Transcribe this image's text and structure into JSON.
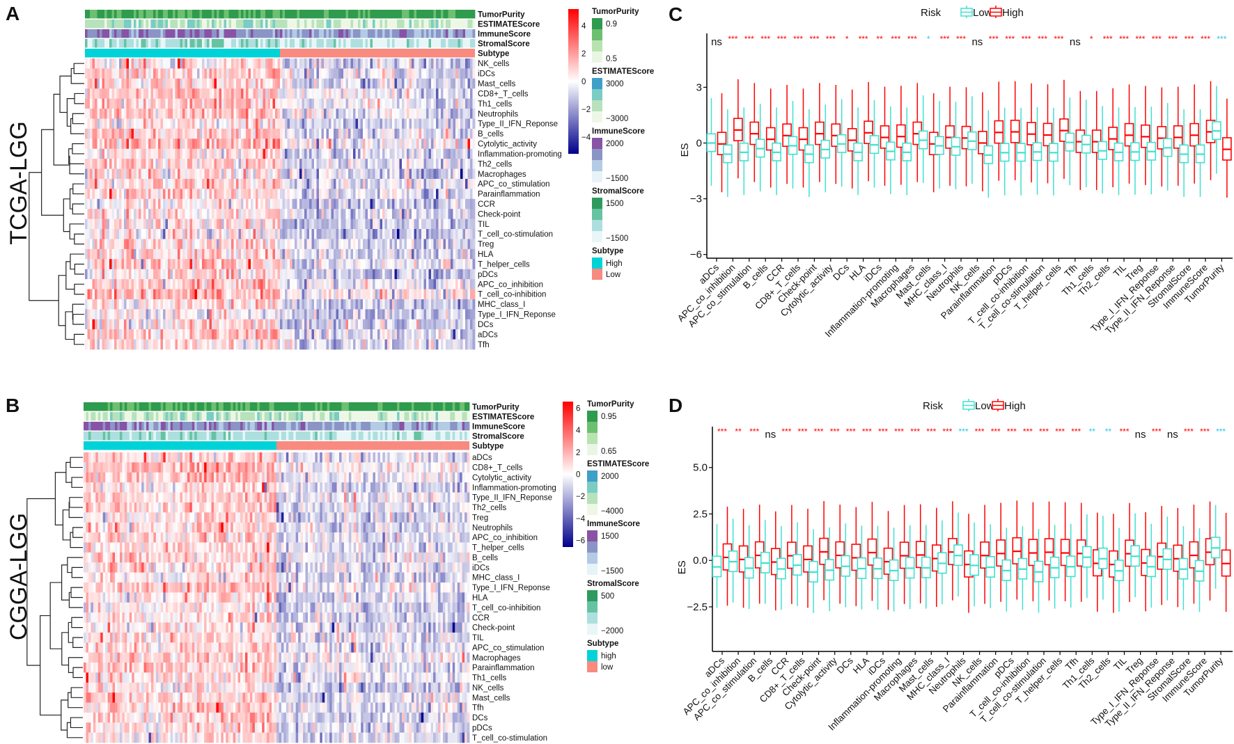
{
  "panels": {
    "A": {
      "label": "A",
      "cohort": "TCGA-LGG",
      "annotation_tracks": [
        "TumorPurity",
        "ESTIMATEScore",
        "ImmuneScore",
        "StromalScore",
        "Subtype"
      ],
      "rows": [
        "NK_cells",
        "iDCs",
        "Mast_cells",
        "CD8+_T_cells",
        "Th1_cells",
        "Neutrophils",
        "Type_II_IFN_Reponse",
        "B_cells",
        "Cytolytic_activity",
        "Inflammation-promoting",
        "Th2_cells",
        "Macrophages",
        "APC_co_stimulation",
        "Parainflammation",
        "CCR",
        "Check-point",
        "TIL",
        "T_cell_co-stimulation",
        "Treg",
        "HLA",
        "T_helper_cells",
        "pDCs",
        "APC_co_inhibition",
        "T_cell_co-inhibition",
        "MHC_class_I",
        "Type_I_IFN_Reponse",
        "DCs",
        "aDCs",
        "Tfh"
      ],
      "subtype_high_fraction": 0.5,
      "colorbar": {
        "ticks": [
          "4",
          "2",
          "0",
          "−2",
          "−4"
        ],
        "tick_values": [
          4,
          2,
          0,
          -2,
          -4
        ],
        "range": [
          -5.2,
          5.2
        ]
      },
      "legends": [
        {
          "title": "TumorPurity",
          "labels": [
            "0.9",
            "0.5"
          ],
          "colors": [
            "#2e9b4e",
            "#6cc070",
            "#b8e3b0",
            "#eaf6e4"
          ]
        },
        {
          "title": "ESTIMATEScore",
          "labels": [
            "3000",
            "−3000"
          ],
          "colors": [
            "#3e9fc8",
            "#7accc4",
            "#b7e2bb",
            "#eef7e6"
          ]
        },
        {
          "title": "ImmuneScore",
          "labels": [
            "2000",
            "−1500"
          ],
          "colors": [
            "#8853a6",
            "#8a95c6",
            "#b3cbe4",
            "#e7f3f8"
          ]
        },
        {
          "title": "StromalScore",
          "labels": [
            "1500",
            "−1500"
          ],
          "colors": [
            "#2e9b5e",
            "#66c3a2",
            "#addfde",
            "#e8f6f8"
          ]
        },
        {
          "title": "Subtype",
          "entries": [
            {
              "label": "High",
              "color": "#00d3d8"
            },
            {
              "label": "Low",
              "color": "#f88a80"
            }
          ]
        }
      ]
    },
    "B": {
      "label": "B",
      "cohort": "CGGA-LGG",
      "annotation_tracks": [
        "TumorPurity",
        "ESTIMATEScore",
        "ImmuneScore",
        "StromalScore",
        "Subtype"
      ],
      "rows": [
        "aDCs",
        "CD8+_T_cells",
        "Cytolytic_activity",
        "Inflammation-promoting",
        "Type_II_IFN_Reponse",
        "Th2_cells",
        "Treg",
        "Neutrophils",
        "APC_co_inhibition",
        "T_helper_cells",
        "B_cells",
        "iDCs",
        "MHC_class_I",
        "Type_I_IFN_Reponse",
        "HLA",
        "T_cell_co-inhibition",
        "CCR",
        "Check-point",
        "TIL",
        "APC_co_stimulation",
        "Macrophages",
        "Parainflammation",
        "Th1_cells",
        "NK_cells",
        "Mast_cells",
        "Tfh",
        "DCs",
        "pDCs",
        "T_cell_co-stimulation"
      ],
      "subtype_high_fraction": 0.5,
      "colorbar": {
        "ticks": [
          "6",
          "4",
          "2",
          "0",
          "−2",
          "−4",
          "−6"
        ],
        "tick_values": [
          6,
          4,
          2,
          0,
          -2,
          -4,
          -6
        ],
        "range": [
          -6.6,
          6.6
        ]
      },
      "legends": [
        {
          "title": "TumorPurity",
          "labels": [
            "0.95",
            "0.65"
          ],
          "colors": [
            "#2e9b4e",
            "#6cc070",
            "#b8e3b0",
            "#eaf6e4"
          ]
        },
        {
          "title": "ESTIMATEScore",
          "labels": [
            "2000",
            "−4000"
          ],
          "colors": [
            "#3e9fc8",
            "#7accc4",
            "#b7e2bb",
            "#eef7e6"
          ]
        },
        {
          "title": "ImmuneScore",
          "labels": [
            "1500",
            "−1500"
          ],
          "colors": [
            "#8853a6",
            "#8a95c6",
            "#b3cbe4",
            "#e7f3f8"
          ]
        },
        {
          "title": "StromalScore",
          "labels": [
            "500",
            "−2000"
          ],
          "colors": [
            "#2e9b5e",
            "#66c3a2",
            "#addfde",
            "#e8f6f8"
          ]
        },
        {
          "title": "Subtype",
          "entries": [
            {
              "label": "high",
              "color": "#00d3d8"
            },
            {
              "label": "low",
              "color": "#f88a80"
            }
          ]
        }
      ]
    }
  },
  "chart_data": [
    {
      "panel": "C",
      "type": "box",
      "title": "",
      "ylabel": "ES",
      "xlabel": "",
      "ylim": [
        -6.2,
        5.9
      ],
      "yticks": [
        3,
        0,
        -3,
        -6
      ],
      "ytick_labels": [
        "3",
        "0",
        "−3",
        "−6"
      ],
      "legend": {
        "title": "Risk",
        "placement": "top-center",
        "entries": [
          "Low",
          "High"
        ]
      },
      "colors": {
        "Low": "#40e0d0",
        "High": "#ff0000",
        "ns": "#111111"
      },
      "categories": [
        "aDCs",
        "APC_co_inhibition",
        "APC_co_stimulation",
        "B_cells",
        "CCR",
        "CD8+_T_cells",
        "Check-point",
        "Cytolytic_activity",
        "DCs",
        "HLA",
        "iDCs",
        "Inflammation-promoting",
        "Macrophages",
        "Mast_cells",
        "MHC_class_I",
        "Neutrophils",
        "NK_cells",
        "Parainflammation",
        "pDCs",
        "T_cell_co-inhibition",
        "T_cell_co-stimulation",
        "T_helper_cells",
        "Tfh",
        "Th1_cells",
        "Th2_cells",
        "TIL",
        "Treg",
        "Type_I_IFN_Reponse",
        "Type_II_IFN_Reponse",
        "StromalScore",
        "ImmuneScore",
        "TumorPurity"
      ],
      "significance": [
        "ns",
        "***",
        "***",
        "***",
        "***",
        "***",
        "***",
        "***",
        "*",
        "***",
        "**",
        "***",
        "***",
        "*",
        "***",
        "***",
        "ns",
        "***",
        "***",
        "***",
        "***",
        "***",
        "ns",
        "*",
        "***",
        "***",
        "***",
        "***",
        "***",
        "***",
        "***",
        "***"
      ],
      "significance_higher_group": [
        "none",
        "High",
        "High",
        "High",
        "High",
        "High",
        "High",
        "High",
        "High",
        "High",
        "High",
        "High",
        "High",
        "Low",
        "High",
        "High",
        "none",
        "High",
        "High",
        "High",
        "High",
        "High",
        "none",
        "High",
        "High",
        "High",
        "High",
        "High",
        "High",
        "High",
        "High",
        "Low"
      ],
      "series": [
        {
          "name": "Low",
          "median": [
            0.0,
            -0.6,
            -0.5,
            -0.3,
            -0.5,
            -0.15,
            -0.6,
            -0.35,
            -0.05,
            -0.5,
            -0.1,
            -0.45,
            -0.5,
            0.15,
            -0.15,
            -0.2,
            0.1,
            -0.65,
            -0.52,
            -0.52,
            -0.48,
            -0.52,
            0.03,
            -0.08,
            -0.42,
            -0.5,
            -0.48,
            -0.46,
            -0.26,
            -0.6,
            -0.6,
            0.65
          ],
          "iqr": 0.95,
          "whisker": 2.3
        },
        {
          "name": "High",
          "median": [
            -0.05,
            0.7,
            0.5,
            0.2,
            0.4,
            0.2,
            0.5,
            0.4,
            0.15,
            0.55,
            0.3,
            0.35,
            0.5,
            -0.05,
            0.3,
            0.27,
            0.0,
            0.57,
            0.6,
            0.48,
            0.43,
            0.67,
            0.07,
            0.07,
            0.22,
            0.42,
            0.34,
            0.26,
            0.3,
            0.42,
            0.6,
            -0.34
          ],
          "iqr": 1.2,
          "whisker": 2.6
        }
      ]
    },
    {
      "panel": "D",
      "type": "box",
      "title": "",
      "ylabel": "ES",
      "xlabel": "",
      "ylim": [
        -4.9,
        7.2
      ],
      "yticks": [
        5.0,
        2.5,
        0.0,
        -2.5
      ],
      "ytick_labels": [
        "5.0",
        "2.5",
        "0.0",
        "−2.5"
      ],
      "legend": {
        "title": "Risk",
        "placement": "top-center",
        "entries": [
          "Low",
          "High"
        ]
      },
      "colors": {
        "Low": "#40e0d0",
        "High": "#ff0000",
        "ns": "#111111"
      },
      "categories": [
        "aDCs",
        "APC_co_inhibition",
        "APC_co_stimulation",
        "B_cells",
        "CCR",
        "CD8+_T_cells",
        "Check-point",
        "Cytolytic_activity",
        "DCs",
        "HLA",
        "iDCs",
        "Inflammation-promoting",
        "Macrophages",
        "Mast_cells",
        "MHC_class_I",
        "Neutrophils",
        "NK_cells",
        "Parainflammation",
        "pDCs",
        "T_cell_co-inhibition",
        "T_cell_co-stimulation",
        "T_helper_cells",
        "Tfh",
        "Th1_cells",
        "Th2_cells",
        "TIL",
        "Treg",
        "Type_I_IFN_Reponse",
        "Type_II_IFN_Reponse",
        "StromalScore",
        "ImmuneScore",
        "TumorPurity"
      ],
      "significance": [
        "***",
        "**",
        "***",
        "ns",
        "***",
        "***",
        "***",
        "***",
        "***",
        "***",
        "***",
        "***",
        "***",
        "***",
        "***",
        "***",
        "***",
        "***",
        "***",
        "***",
        "***",
        "***",
        "***",
        "**",
        "**",
        "***",
        "ns",
        "***",
        "ns",
        "***",
        "***",
        "***"
      ],
      "significance_higher_group": [
        "High",
        "High",
        "High",
        "none",
        "High",
        "High",
        "High",
        "High",
        "High",
        "High",
        "High",
        "High",
        "High",
        "High",
        "High",
        "Low",
        "High",
        "High",
        "High",
        "High",
        "High",
        "High",
        "High",
        "Low",
        "Low",
        "High",
        "none",
        "High",
        "none",
        "High",
        "High",
        "Low"
      ],
      "series": [
        {
          "name": "Low",
          "median": [
            -0.35,
            -0.07,
            -0.42,
            -0.14,
            -0.46,
            -0.26,
            -0.63,
            -0.53,
            -0.32,
            -0.44,
            -0.45,
            -0.55,
            -0.42,
            -0.4,
            -0.16,
            0.26,
            -0.27,
            -0.37,
            -0.55,
            -0.47,
            -0.62,
            -0.4,
            -0.34,
            0.17,
            0.09,
            -0.56,
            0.22,
            -0.34,
            0.05,
            -0.47,
            -0.58,
            0.67
          ],
          "iqr": 1.1,
          "whisker": 2.2
        },
        {
          "name": "High",
          "median": [
            0.16,
            0.05,
            0.27,
            -0.09,
            0.25,
            0.05,
            0.46,
            0.27,
            0.14,
            0.42,
            -0.07,
            0.25,
            0.29,
            0.1,
            0.45,
            -0.22,
            0.26,
            0.37,
            0.49,
            0.4,
            0.44,
            0.4,
            0.37,
            -0.16,
            -0.22,
            0.36,
            -0.14,
            0.2,
            0.09,
            0.27,
            0.44,
            -0.17
          ],
          "iqr": 1.4,
          "whisker": 2.6
        }
      ]
    }
  ]
}
